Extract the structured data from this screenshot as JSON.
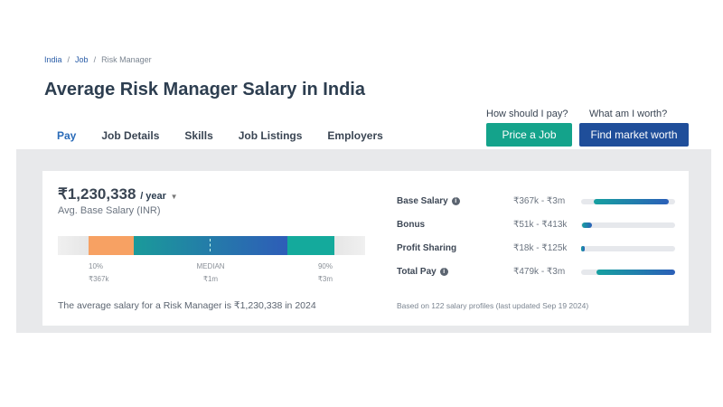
{
  "breadcrumb": [
    "India",
    "Job",
    "Risk Manager"
  ],
  "title": "Average Risk Manager Salary in India",
  "tabs": [
    "Pay",
    "Job Details",
    "Skills",
    "Job Listings",
    "Employers"
  ],
  "cta": {
    "q1": "How should I pay?",
    "b1": "Price a Job",
    "q2": "What am I worth?",
    "b2": "Find market worth"
  },
  "colors": {
    "teal": "#14a38b",
    "blue": "#1f4e9a",
    "orange": "#f7a163"
  },
  "summary": {
    "amount": "₹1,230,338",
    "period": "/ year",
    "label": "Avg. Base Salary (INR)",
    "footer": "The average salary for a Risk Manager is ₹1,230,338 in 2024"
  },
  "distribution": {
    "p10_label": "10%",
    "p10": "₹367k",
    "median_label": "MEDIAN",
    "median": "₹1m",
    "p90_label": "90%",
    "p90": "₹3m"
  },
  "breakdown": [
    {
      "label": "Base Salary",
      "info": true,
      "range": "₹367k - ₹3m",
      "start": 0.13,
      "end": 0.93
    },
    {
      "label": "Bonus",
      "info": false,
      "range": "₹51k - ₹413k",
      "start": 0.01,
      "end": 0.12
    },
    {
      "label": "Profit Sharing",
      "info": false,
      "range": "₹18k - ₹125k",
      "start": 0.0,
      "end": 0.04
    },
    {
      "label": "Total Pay",
      "info": true,
      "range": "₹479k - ₹3m",
      "start": 0.16,
      "end": 1.0
    }
  ],
  "note": "Based on 122 salary profiles (last updated Sep 19 2024)"
}
